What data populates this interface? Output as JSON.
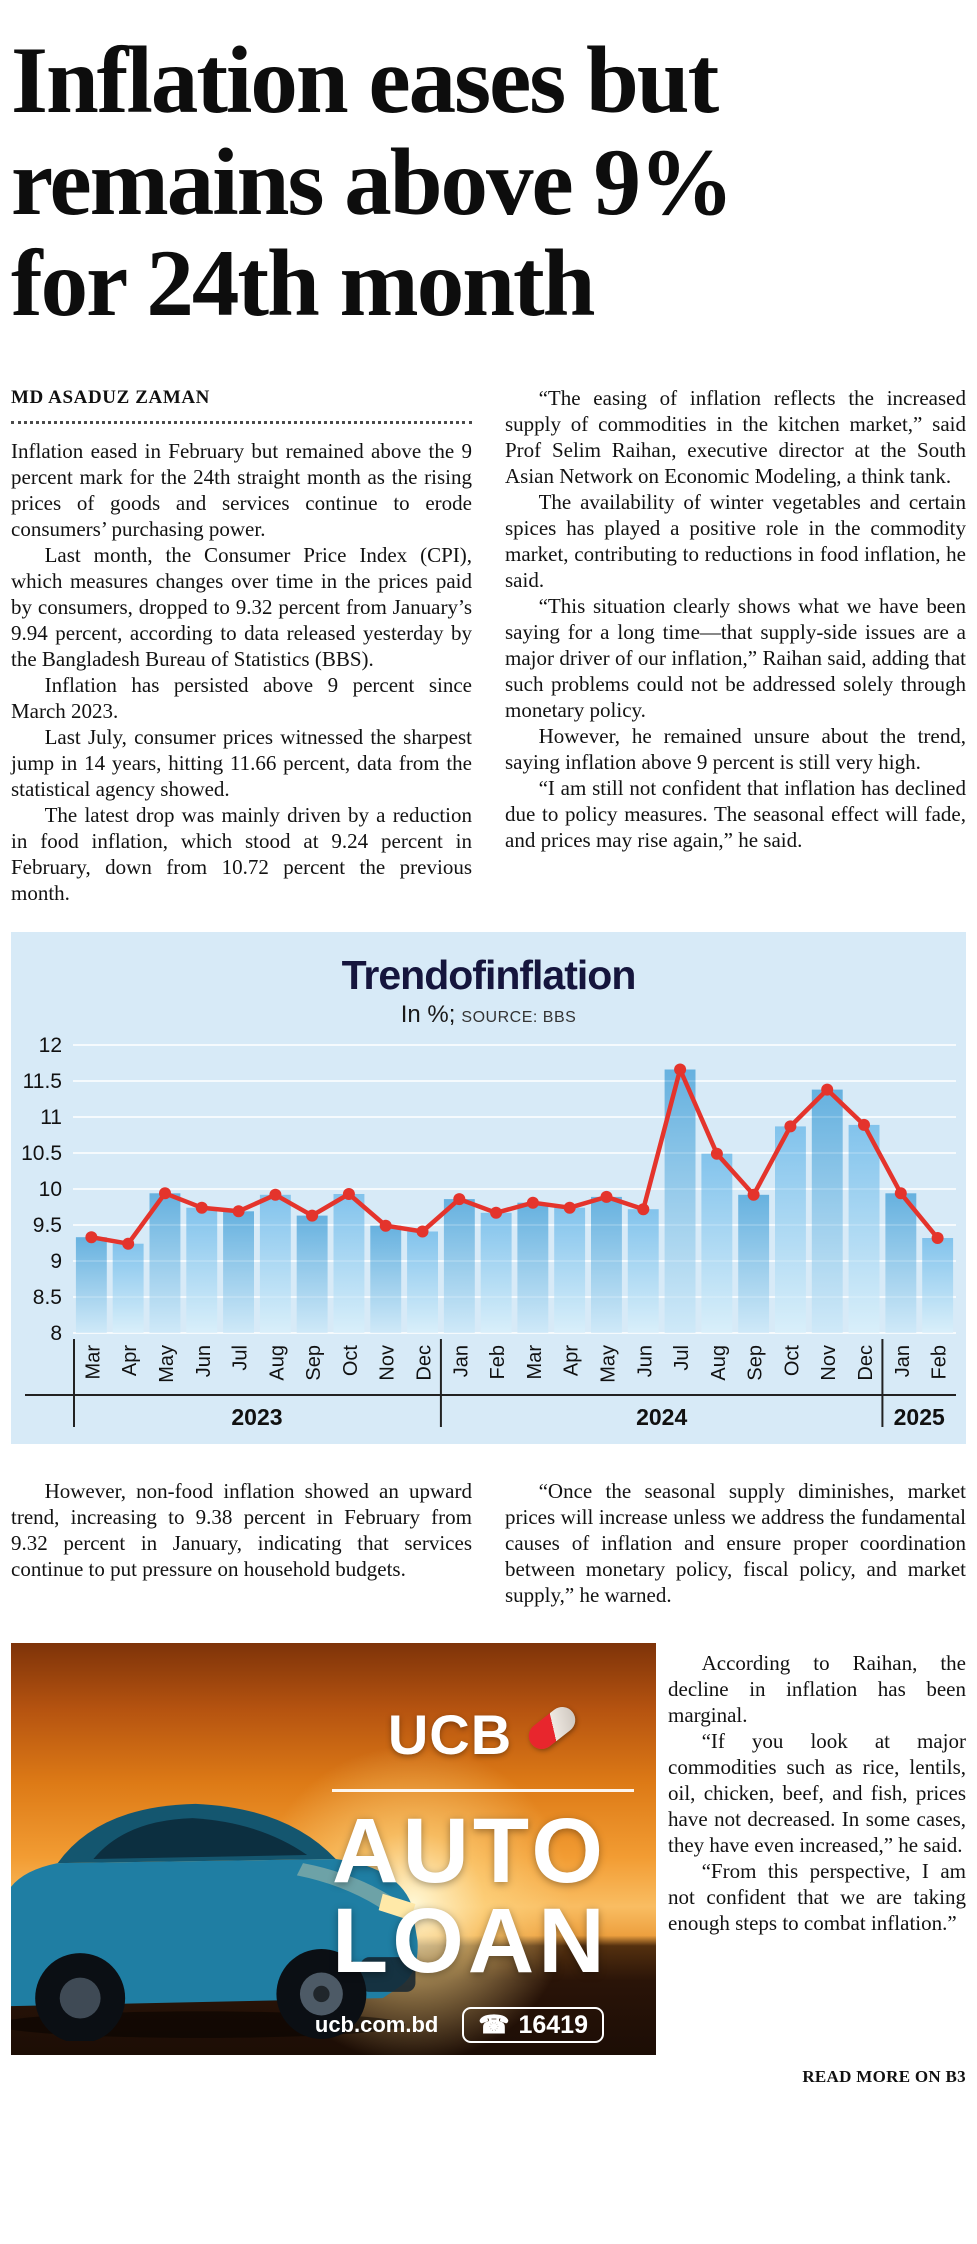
{
  "article": {
    "headline_lines": [
      "Inflation eases but",
      "remains above 9%",
      "for 24th month"
    ],
    "byline": "MD ASADUZ ZAMAN",
    "col1_paragraphs": [
      "Inflation eased in February but remained above the 9 percent mark for the 24th straight month as the rising prices of goods and services continue to erode consumers’ purchasing power.",
      "Last month, the Consumer Price Index (CPI), which measures changes over time in the prices paid by consumers, dropped to 9.32 percent from January’s 9.94 percent, according to data released yesterday by the Bangladesh Bureau of Statistics (BBS).",
      "Inflation has persisted above 9 percent since March 2023.",
      "Last July, consumer prices witnessed the sharpest jump in 14 years, hitting 11.66 percent, data from the statistical agency showed.",
      "The latest drop was mainly driven by a reduction in food inflation, which stood at 9.24 percent in February, down from 10.72 percent the previous month."
    ],
    "col2_paragraphs": [
      "“The easing of inflation reflects the increased supply of commodities in the kitchen market,” said Prof Selim Raihan, executive director at the South Asian Network on Economic Modeling, a think tank.",
      "The availability of winter vegetables and certain spices has played a positive role in the commodity market, contributing to reductions in food inflation, he said.",
      "“This situation clearly shows what we have been saying for a long time—that supply-side issues are a major driver of our inflation,” Raihan said, adding that such problems could not be addressed solely through monetary policy.",
      "However, he remained unsure about the trend, saying inflation above 9 percent is still very high.",
      "“I am still not confident that inflation has declined due to policy measures. The seasonal effect will fade, and prices may rise again,” he said."
    ],
    "lower_left_paragraph": "However, non-food inflation showed an upward trend, increasing to 9.38 percent in February from 9.32 percent in January, indicating that services continue to put pressure on household budgets.",
    "lower_right_paragraphs": [
      "“Once the seasonal supply diminishes, market prices will increase unless we address the fundamental causes of inflation and ensure proper coordination between monetary policy, fiscal policy, and market supply,” he warned.",
      "According to Raihan, the decline in inflation has been marginal.",
      "“If you look at major commodities such as rice, lentils, oil, chicken, beef, and fish, prices have not decreased. In some cases, they have even increased,” he said.",
      "“From this perspective, I am not confident that we are taking enough steps to combat inflation.”"
    ],
    "read_more": "READ MORE ON B3"
  },
  "chart_data": {
    "type": "area",
    "title": "Trendofinflation",
    "unit_label": "In %;",
    "source_label": "SOURCE: BBS",
    "x": [
      "Mar",
      "Apr",
      "May",
      "Jun",
      "Jul",
      "Aug",
      "Sep",
      "Oct",
      "Nov",
      "Dec",
      "Jan",
      "Feb",
      "Mar",
      "Apr",
      "May",
      "Jun",
      "Jul",
      "Aug",
      "Sep",
      "Oct",
      "Nov",
      "Dec",
      "Jan",
      "Feb"
    ],
    "values": [
      9.33,
      9.24,
      9.94,
      9.74,
      9.69,
      9.92,
      9.63,
      9.93,
      9.49,
      9.41,
      9.86,
      9.67,
      9.81,
      9.74,
      9.89,
      9.72,
      11.66,
      10.49,
      9.92,
      10.87,
      11.38,
      10.89,
      9.94,
      9.32
    ],
    "year_groups": [
      {
        "label": "2023",
        "count": 10
      },
      {
        "label": "2024",
        "count": 12
      },
      {
        "label": "2025",
        "count": 2
      }
    ],
    "ylim": [
      8,
      12
    ],
    "ytick_step": 0.5,
    "legend": "none",
    "grid": "horizontal",
    "colors": {
      "background": "#d7eaf7",
      "line": "#e4342c",
      "grid": "#ffffff",
      "text": "#111111",
      "bar_top": "#66b1df",
      "bar_bottom": "#cfe9f8",
      "bar_top_alt": "#82c3ec",
      "bar_bottom_alt": "#d9effa"
    }
  },
  "ad": {
    "brand": "UCB",
    "product_line1": "AUTO",
    "product_line2": "LOAN",
    "website": "ucb.com.bd",
    "phone_icon": "☎",
    "phone": "16419"
  }
}
